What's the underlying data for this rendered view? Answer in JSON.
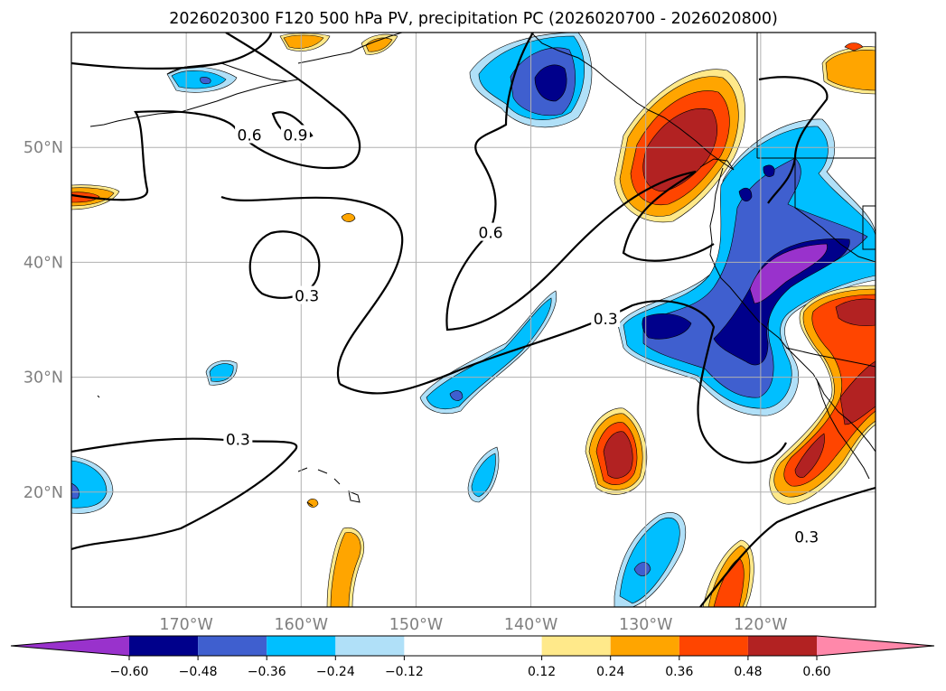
{
  "chart_data": {
    "type": "map-contour",
    "title": "2026020300 F120 500 hPa PV, precipitation PC (2026020700 - 2026020800)",
    "lon_range": [
      -180,
      -110
    ],
    "lat_range": [
      10,
      60
    ],
    "lon_ticks": [
      -170,
      -160,
      -150,
      -140,
      -130,
      -120
    ],
    "lon_labels": [
      "170°W",
      "160°W",
      "150°W",
      "140°W",
      "130°W",
      "120°W"
    ],
    "lat_ticks": [
      50,
      40,
      30,
      20
    ],
    "lat_labels": [
      "50°N",
      "40°N",
      "30°N",
      "20°N"
    ],
    "grid": true,
    "pv_contour_levels": [
      0.3,
      0.6,
      0.9
    ],
    "pv_contour_labels": [
      {
        "text": "0.6",
        "lon": -164.5,
        "lat": 51
      },
      {
        "text": "0.9",
        "lon": -160.5,
        "lat": 51
      },
      {
        "text": "0.6",
        "lon": -143.5,
        "lat": 42.5
      },
      {
        "text": "0.3",
        "lon": -159.5,
        "lat": 37
      },
      {
        "text": "0.3",
        "lon": -133.5,
        "lat": 35
      },
      {
        "text": "0.3",
        "lon": -165.5,
        "lat": 24.5
      },
      {
        "text": "0.3",
        "lon": -116,
        "lat": 16
      }
    ],
    "colorbar": {
      "ticks": [
        -0.6,
        -0.48,
        -0.36,
        -0.24,
        -0.12,
        0.12,
        0.24,
        0.36,
        0.48,
        0.6
      ],
      "tick_labels": [
        "−0.60",
        "−0.48",
        "−0.36",
        "−0.24",
        "−0.12",
        "0.12",
        "0.24",
        "0.36",
        "0.48",
        "0.60"
      ],
      "colors": [
        "#9932cc",
        "#00008b",
        "#3f5fcf",
        "#00bfff",
        "#b0e0f8",
        "#ffffff",
        "#ffe98a",
        "#ffa500",
        "#ff4500",
        "#b22222",
        "#ff88aa"
      ],
      "extend": "both"
    }
  }
}
